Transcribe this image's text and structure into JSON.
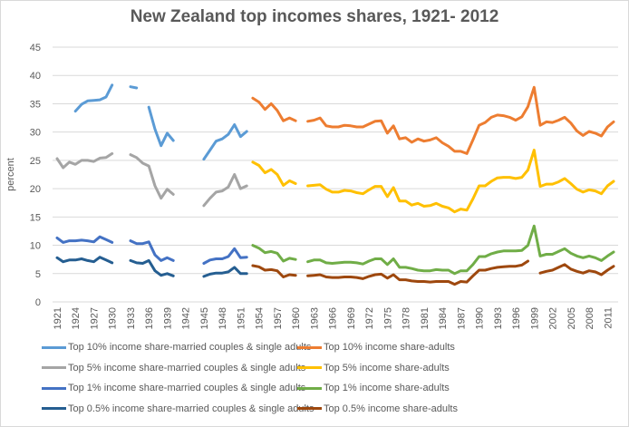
{
  "chart_data": {
    "type": "line",
    "title": "New Zealand  top incomes shares,  1921- 2012",
    "xlabel": "",
    "ylabel": "percent",
    "x_range": [
      1921,
      2012
    ],
    "ylim": [
      0,
      45
    ],
    "y_ticks": [
      "0",
      "5",
      "10",
      "15",
      "20",
      "25",
      "30",
      "35",
      "40",
      "45"
    ],
    "x_ticks": [
      "1921",
      "1924",
      "1927",
      "1930",
      "1933",
      "1936",
      "1939",
      "1942",
      "1945",
      "1948",
      "1951",
      "1954",
      "1957",
      "1960",
      "1963",
      "1966",
      "1969",
      "1972",
      "1975",
      "1978",
      "1981",
      "1984",
      "1987",
      "1990",
      "1993",
      "1996",
      "1999",
      "2002",
      "2005",
      "2008",
      "2011"
    ],
    "grid": true,
    "legend_position": "bottom",
    "series": [
      {
        "name": "Top 10%  income share-married couples &  single adults",
        "color": "#5B9BD5",
        "start_year": 1921,
        "values": [
          null,
          null,
          null,
          33.7,
          34.9,
          35.5,
          35.6,
          35.7,
          36.2,
          38.3,
          null,
          null,
          38,
          37.8,
          null,
          34.4,
          30.5,
          27.6,
          29.8,
          28.5,
          null,
          null,
          null,
          null,
          25.2,
          26.8,
          28.4,
          28.8,
          29.6,
          31.3,
          29.2,
          30.1
        ]
      },
      {
        "name": "Top 10%  income share-adults",
        "color": "#ED7D31",
        "start_year": 1953,
        "values": [
          36,
          35.3,
          34,
          35,
          33.8,
          32,
          32.5,
          32,
          null,
          31.9,
          32.1,
          32.5,
          31.1,
          30.9,
          30.9,
          31.2,
          31.1,
          30.9,
          30.9,
          31.4,
          31.9,
          32,
          29.8,
          31.1,
          28.8,
          29,
          28.2,
          28.8,
          28.4,
          28.6,
          29,
          28.1,
          27.5,
          26.6,
          26.6,
          26.2,
          28.6,
          31.2,
          31.7,
          32.6,
          33,
          32.9,
          32.6,
          32.1,
          32.7,
          34.5,
          37.9,
          31.2,
          31.8,
          31.7,
          32.1,
          32.6,
          31.6,
          30.2,
          29.4,
          30.1,
          29.8,
          29.3,
          30.9,
          31.8
        ]
      },
      {
        "name": "Top 5%  income share-married couples &  single adults",
        "color": "#A5A5A5",
        "start_year": 1921,
        "values": [
          25.3,
          23.7,
          24.7,
          24.3,
          25,
          25,
          24.8,
          25.4,
          25.5,
          26.2,
          null,
          null,
          26,
          25.5,
          24.5,
          24,
          20.5,
          18.3,
          19.9,
          19,
          null,
          null,
          null,
          null,
          17,
          18.3,
          19.4,
          19.6,
          20.3,
          22.5,
          20,
          20.5
        ]
      },
      {
        "name": "Top 5%  income share-adults",
        "color": "#FFC000",
        "start_year": 1953,
        "values": [
          24.7,
          24.1,
          22.8,
          23.4,
          22.5,
          20.6,
          21.4,
          20.9,
          null,
          20.5,
          20.6,
          20.7,
          19.9,
          19.4,
          19.4,
          19.7,
          19.6,
          19.3,
          19.1,
          19.8,
          20.4,
          20.4,
          18.6,
          20.2,
          17.8,
          17.8,
          17.1,
          17.4,
          16.9,
          17,
          17.4,
          16.9,
          16.6,
          15.9,
          16.4,
          16.2,
          18.2,
          20.5,
          20.5,
          21.3,
          21.9,
          22,
          22,
          21.8,
          22,
          23.3,
          26.8,
          20.4,
          20.8,
          20.8,
          21.2,
          21.8,
          20.9,
          19.9,
          19.4,
          19.8,
          19.6,
          19.1,
          20.5,
          21.3
        ]
      },
      {
        "name": "Top 1%  income share-married couples &  single adults",
        "color": "#4472C4",
        "start_year": 1921,
        "values": [
          11.3,
          10.5,
          10.8,
          10.8,
          10.9,
          10.8,
          10.6,
          11.5,
          11,
          10.5,
          null,
          null,
          10.8,
          10.3,
          10.3,
          10.6,
          8.3,
          7.3,
          7.8,
          7.3,
          null,
          null,
          null,
          null,
          6.8,
          7.4,
          7.6,
          7.6,
          8,
          9.4,
          7.8,
          7.9
        ]
      },
      {
        "name": "Top 1%  income share-adults",
        "color": "#70AD47",
        "start_year": 1953,
        "values": [
          10,
          9.5,
          8.7,
          8.9,
          8.6,
          7.2,
          7.7,
          7.5,
          null,
          7.1,
          7.4,
          7.4,
          6.9,
          6.8,
          6.9,
          7,
          7,
          6.9,
          6.7,
          7.2,
          7.6,
          7.6,
          6.6,
          7.6,
          6.1,
          6.1,
          5.9,
          5.6,
          5.5,
          5.5,
          5.7,
          5.6,
          5.6,
          5,
          5.5,
          5.5,
          6.6,
          8,
          8,
          8.5,
          8.8,
          9,
          9,
          9,
          9.1,
          10,
          13.4,
          8.1,
          8.4,
          8.4,
          8.9,
          9.4,
          8.6,
          8.1,
          7.8,
          8.1,
          7.8,
          7.3,
          8.1,
          8.8
        ]
      },
      {
        "name": "Top 0.5%  income share-married couples &  single adults",
        "color": "#255E91",
        "start_year": 1921,
        "values": [
          7.8,
          7.1,
          7.4,
          7.4,
          7.6,
          7.3,
          7.1,
          7.9,
          7.4,
          6.9,
          null,
          null,
          7.3,
          6.9,
          6.8,
          7.3,
          5.5,
          4.7,
          5,
          4.6,
          null,
          null,
          null,
          null,
          4.5,
          4.9,
          5.1,
          5.1,
          5.3,
          6.1,
          5,
          5
        ]
      },
      {
        "name": "Top 0.5%  income share-adults",
        "color": "#9E480E",
        "start_year": 1953,
        "values": [
          6.4,
          6.2,
          5.6,
          5.7,
          5.5,
          4.4,
          4.8,
          4.7,
          null,
          4.6,
          4.7,
          4.8,
          4.4,
          4.3,
          4.3,
          4.4,
          4.4,
          4.3,
          4.1,
          4.5,
          4.8,
          4.9,
          4.2,
          4.8,
          3.9,
          3.9,
          3.7,
          3.6,
          3.6,
          3.5,
          3.6,
          3.6,
          3.6,
          3.1,
          3.6,
          3.5,
          4.6,
          5.6,
          5.6,
          5.9,
          6.1,
          6.2,
          6.3,
          6.3,
          6.5,
          7.2,
          null,
          5.1,
          5.4,
          5.6,
          6.1,
          6.6,
          5.8,
          5.4,
          5.1,
          5.5,
          5.3,
          4.8,
          5.6,
          6.3
        ]
      }
    ]
  }
}
